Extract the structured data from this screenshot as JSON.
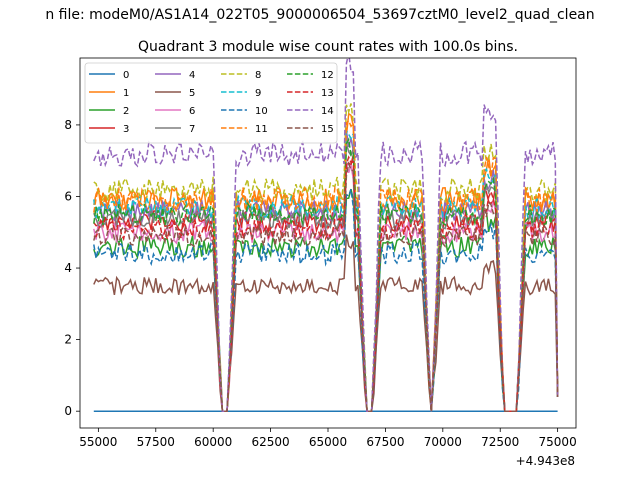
{
  "figure": {
    "suptitle": "n file: modeM0/AS1A14_022T05_9000006504_53697cztM0_level2_quad_clean",
    "title": "Quadrant 3 module wise count rates with 100.0s bins."
  },
  "chart_data": {
    "type": "line",
    "title": "Quadrant 3 module wise count rates with 100.0s bins.",
    "xlabel": "",
    "ylabel": "",
    "x_offset_label": "+4.943e8",
    "xlim": [
      54200,
      75800
    ],
    "ylim": [
      -0.47,
      9.87
    ],
    "x_ticks": [
      55000,
      57500,
      60000,
      62500,
      65000,
      67500,
      70000,
      72500,
      75000
    ],
    "x_tick_labels": [
      "55000",
      "57500",
      "60000",
      "62500",
      "65000",
      "67500",
      "70000",
      "72500",
      "75000"
    ],
    "y_ticks": [
      0,
      2,
      4,
      6,
      8
    ],
    "y_tick_labels": [
      "0",
      "2",
      "4",
      "6",
      "8"
    ],
    "grid": false,
    "legend_position": "top-left",
    "legend_columns": 4,
    "x_start": 54800,
    "x_end": 75000,
    "bin_size": 100,
    "gaps": [
      {
        "from": 60400,
        "to": 60600
      },
      {
        "from": 66700,
        "to": 66900
      },
      {
        "from": 69500,
        "to": 69500
      },
      {
        "from": 72700,
        "to": 73200
      }
    ],
    "series": [
      {
        "name": "0",
        "color": "#1f77b4",
        "dash": "solid",
        "level": 0.0,
        "noise": 0.0
      },
      {
        "name": "1",
        "color": "#ff7f0e",
        "dash": "solid",
        "level": 5.9,
        "noise": 0.35
      },
      {
        "name": "2",
        "color": "#2ca02c",
        "dash": "solid",
        "level": 4.6,
        "noise": 0.3
      },
      {
        "name": "3",
        "color": "#d62728",
        "dash": "solid",
        "level": 5.3,
        "noise": 0.3
      },
      {
        "name": "4",
        "color": "#9467bd",
        "dash": "solid",
        "level": 5.6,
        "noise": 0.3
      },
      {
        "name": "5",
        "color": "#8c564b",
        "dash": "solid",
        "level": 3.5,
        "noise": 0.25
      },
      {
        "name": "6",
        "color": "#e377c2",
        "dash": "solid",
        "level": 5.0,
        "noise": 0.3
      },
      {
        "name": "7",
        "color": "#7f7f7f",
        "dash": "solid",
        "level": 5.4,
        "noise": 0.3
      },
      {
        "name": "8",
        "color": "#bcbd22",
        "dash": "dashed",
        "level": 6.2,
        "noise": 0.35
      },
      {
        "name": "9",
        "color": "#17becf",
        "dash": "dashed",
        "level": 5.7,
        "noise": 0.3
      },
      {
        "name": "10",
        "color": "#1f77b4",
        "dash": "dashed",
        "level": 4.4,
        "noise": 0.3
      },
      {
        "name": "11",
        "color": "#ff7f0e",
        "dash": "dashed",
        "level": 5.9,
        "noise": 0.35
      },
      {
        "name": "12",
        "color": "#2ca02c",
        "dash": "dashed",
        "level": 5.5,
        "noise": 0.3
      },
      {
        "name": "13",
        "color": "#d62728",
        "dash": "dashed",
        "level": 5.1,
        "noise": 0.3
      },
      {
        "name": "14",
        "color": "#9467bd",
        "dash": "dashed",
        "level": 7.2,
        "noise": 0.35
      },
      {
        "name": "15",
        "color": "#8c564b",
        "dash": "dashed",
        "level": 4.9,
        "noise": 0.3
      }
    ]
  }
}
